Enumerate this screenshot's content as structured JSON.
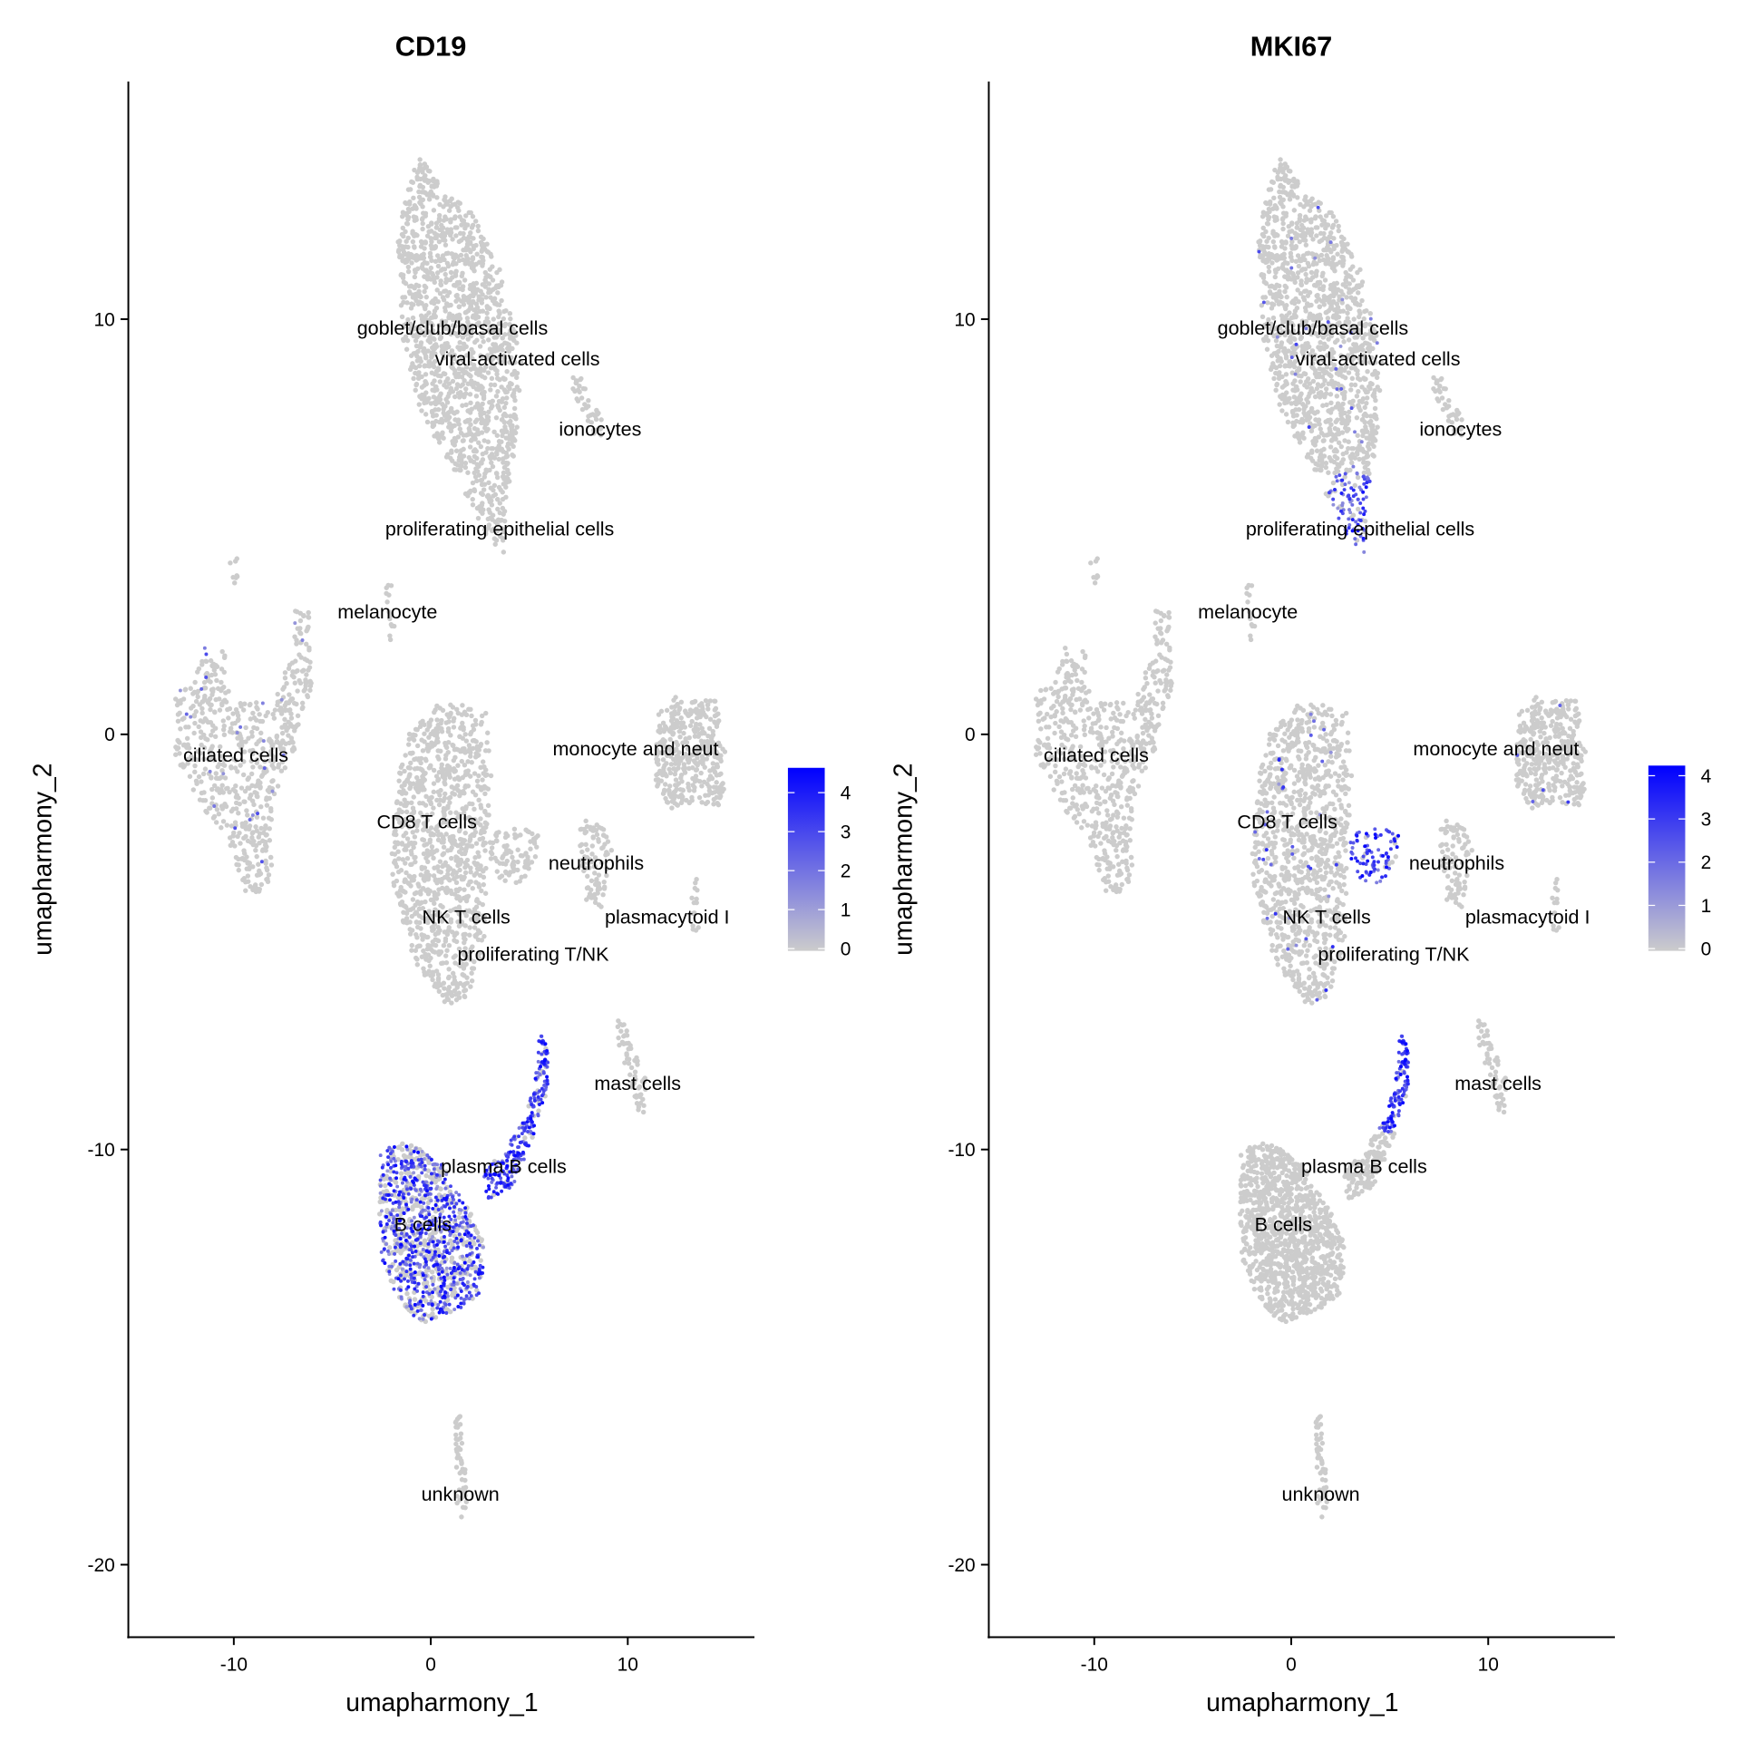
{
  "chart_data": [
    {
      "type": "scatter",
      "title": "CD19",
      "xlabel": "umapharmony_1",
      "ylabel": "umapharmony_2",
      "xlim": [
        -15.4,
        16.4
      ],
      "ylim": [
        -21.7,
        15.7
      ],
      "xticks": [
        "-10",
        "0",
        "10"
      ],
      "xtick_values": [
        -10,
        0,
        10
      ],
      "yticks": [
        "10",
        "0",
        "-10",
        "-20"
      ],
      "ytick_values": [
        10,
        0,
        -10,
        -20
      ],
      "grid": false,
      "legend": {
        "placement": "right",
        "type": "colorbar",
        "low_color": "#cccccc",
        "high_color": "#0000ff",
        "range": [
          0,
          4.6
        ],
        "ticks": [
          "0",
          "1",
          "2",
          "3",
          "4"
        ],
        "tick_values": [
          0,
          1,
          2,
          3,
          4
        ]
      },
      "expression_by_cluster": {
        "B cells": 2.5,
        "plasma B cells": 2.8,
        "ciliated cells": 0.05
      }
    },
    {
      "type": "scatter",
      "title": "MKI67",
      "xlabel": "umapharmony_1",
      "ylabel": "umapharmony_2",
      "xlim": [
        -15.4,
        16.4
      ],
      "ylim": [
        -21.7,
        15.7
      ],
      "xticks": [
        "-10",
        "0",
        "10"
      ],
      "xtick_values": [
        -10,
        0,
        10
      ],
      "yticks": [
        "10",
        "0",
        "-10",
        "-20"
      ],
      "ytick_values": [
        10,
        0,
        -10,
        -20
      ],
      "grid": false,
      "legend": {
        "placement": "right",
        "type": "colorbar",
        "low_color": "#cccccc",
        "high_color": "#0000ff",
        "range": [
          0,
          4.2
        ],
        "ticks": [
          "0",
          "1",
          "2",
          "3",
          "4"
        ],
        "tick_values": [
          0,
          1,
          2,
          3,
          4
        ]
      },
      "expression_by_cluster": {
        "proliferating epithelial cells": 2.5,
        "proliferating T/NK": 2.8,
        "plasma B cells": 2.6
      }
    }
  ],
  "cluster_labels": [
    {
      "text": "goblet/club/basal cells",
      "x": 1.1,
      "y": 9.2
    },
    {
      "text": "viral-activated cells",
      "x": 4.4,
      "y": 9.05
    },
    {
      "text": "ionocytes",
      "x": 8.6,
      "y": 7.35
    },
    {
      "text": "proliferating epithelial cells",
      "x": 3.5,
      "y": 4.95
    },
    {
      "text": "melanocyte",
      "x": -2.2,
      "y": 2.95
    },
    {
      "text": "ciliated cells",
      "x": -9.9,
      "y": -0.5
    },
    {
      "text": "monocyte and neut",
      "x": 10.4,
      "y": -0.35
    },
    {
      "text": "CD8 T cells",
      "x": -0.2,
      "y": -2.1
    },
    {
      "text": "neutrophils",
      "x": 8.4,
      "y": -3.1
    },
    {
      "text": "NK T cells",
      "x": 1.8,
      "y": -4.4
    },
    {
      "text": "proliferating T/NK",
      "x": 5.2,
      "y": -4.65
    },
    {
      "text": "plasmacytoid I",
      "x": 12.0,
      "y": -4.4
    },
    {
      "text": "mast cells",
      "x": 10.5,
      "y": -8.4
    },
    {
      "text": "plasma B cells",
      "x": 3.7,
      "y": -10.4
    },
    {
      "text": "B cells",
      "x": -0.4,
      "y": -11.8
    },
    {
      "text": "unknown",
      "x": 1.5,
      "y": -18.3
    }
  ]
}
